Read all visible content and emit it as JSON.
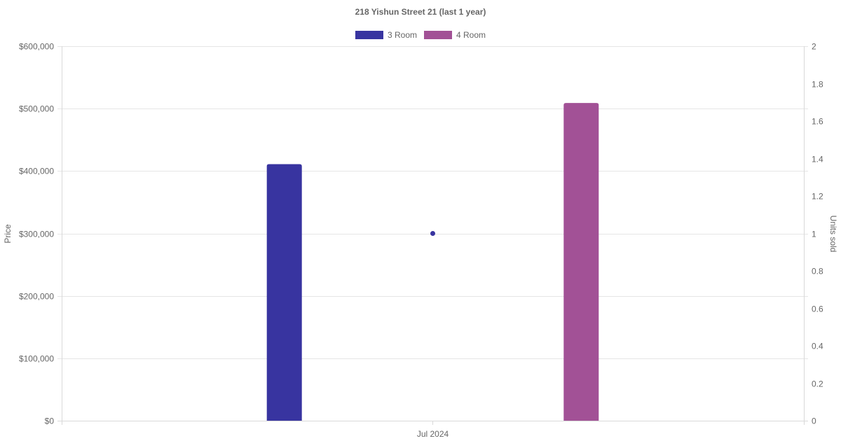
{
  "chart_data": {
    "type": "bar",
    "title": "218 Yishun Street 21 (last 1 year)",
    "categories": [
      "Jul 2024"
    ],
    "series": [
      {
        "name": "3 Room",
        "type": "bar",
        "axis": "price",
        "color": "#3834a0",
        "values": [
          411000
        ]
      },
      {
        "name": "4 Room",
        "type": "bar",
        "axis": "price",
        "color": "#a25196",
        "values": [
          509000
        ]
      },
      {
        "name": "",
        "type": "scatter",
        "axis": "units",
        "color": "#3834a0",
        "values": [
          1
        ]
      }
    ],
    "y_left": {
      "label": "Price",
      "ylim": [
        0,
        600000
      ],
      "ticks": [
        0,
        100000,
        200000,
        300000,
        400000,
        500000,
        600000
      ],
      "tick_labels": [
        "$0",
        "$100,000",
        "$200,000",
        "$300,000",
        "$400,000",
        "$500,000",
        "$600,000"
      ]
    },
    "y_right": {
      "label": "Units sold",
      "ylim": [
        0,
        2
      ],
      "ticks": [
        0,
        0.2,
        0.4,
        0.6,
        0.8,
        1,
        1.2,
        1.4,
        1.6,
        1.8,
        2
      ],
      "tick_labels": [
        "0",
        "0.2",
        "0.4",
        "0.6",
        "0.8",
        "1",
        "1.2",
        "1.4",
        "1.6",
        "1.8",
        "2"
      ]
    },
    "grid": true,
    "legend_position": "top-center"
  }
}
